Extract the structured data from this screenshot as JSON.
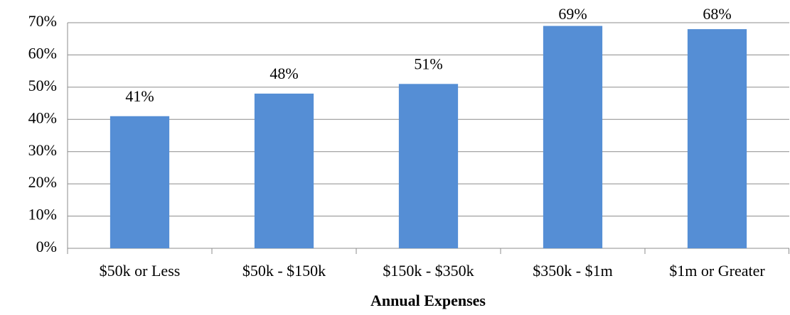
{
  "chart_data": {
    "type": "bar",
    "x_label": "Annual Expenses",
    "categories": [
      "$50k or Less",
      "$50k - $150k",
      "$150k - $350k",
      "$350k - $1m",
      "$1m or Greater"
    ],
    "values": [
      41,
      48,
      51,
      69,
      68
    ],
    "value_labels": [
      "41%",
      "48%",
      "51%",
      "69%",
      "68%"
    ],
    "color": "#558ed5",
    "ylim": [
      0,
      70
    ],
    "yticks": [
      {
        "value": 0,
        "label": "0%"
      },
      {
        "value": 10,
        "label": "10%"
      },
      {
        "value": 20,
        "label": "20%"
      },
      {
        "value": 30,
        "label": "30%"
      },
      {
        "value": 40,
        "label": "40%"
      },
      {
        "value": 50,
        "label": "50%"
      },
      {
        "value": 60,
        "label": "60%"
      },
      {
        "value": 70,
        "label": "70%"
      }
    ],
    "grid": true
  }
}
